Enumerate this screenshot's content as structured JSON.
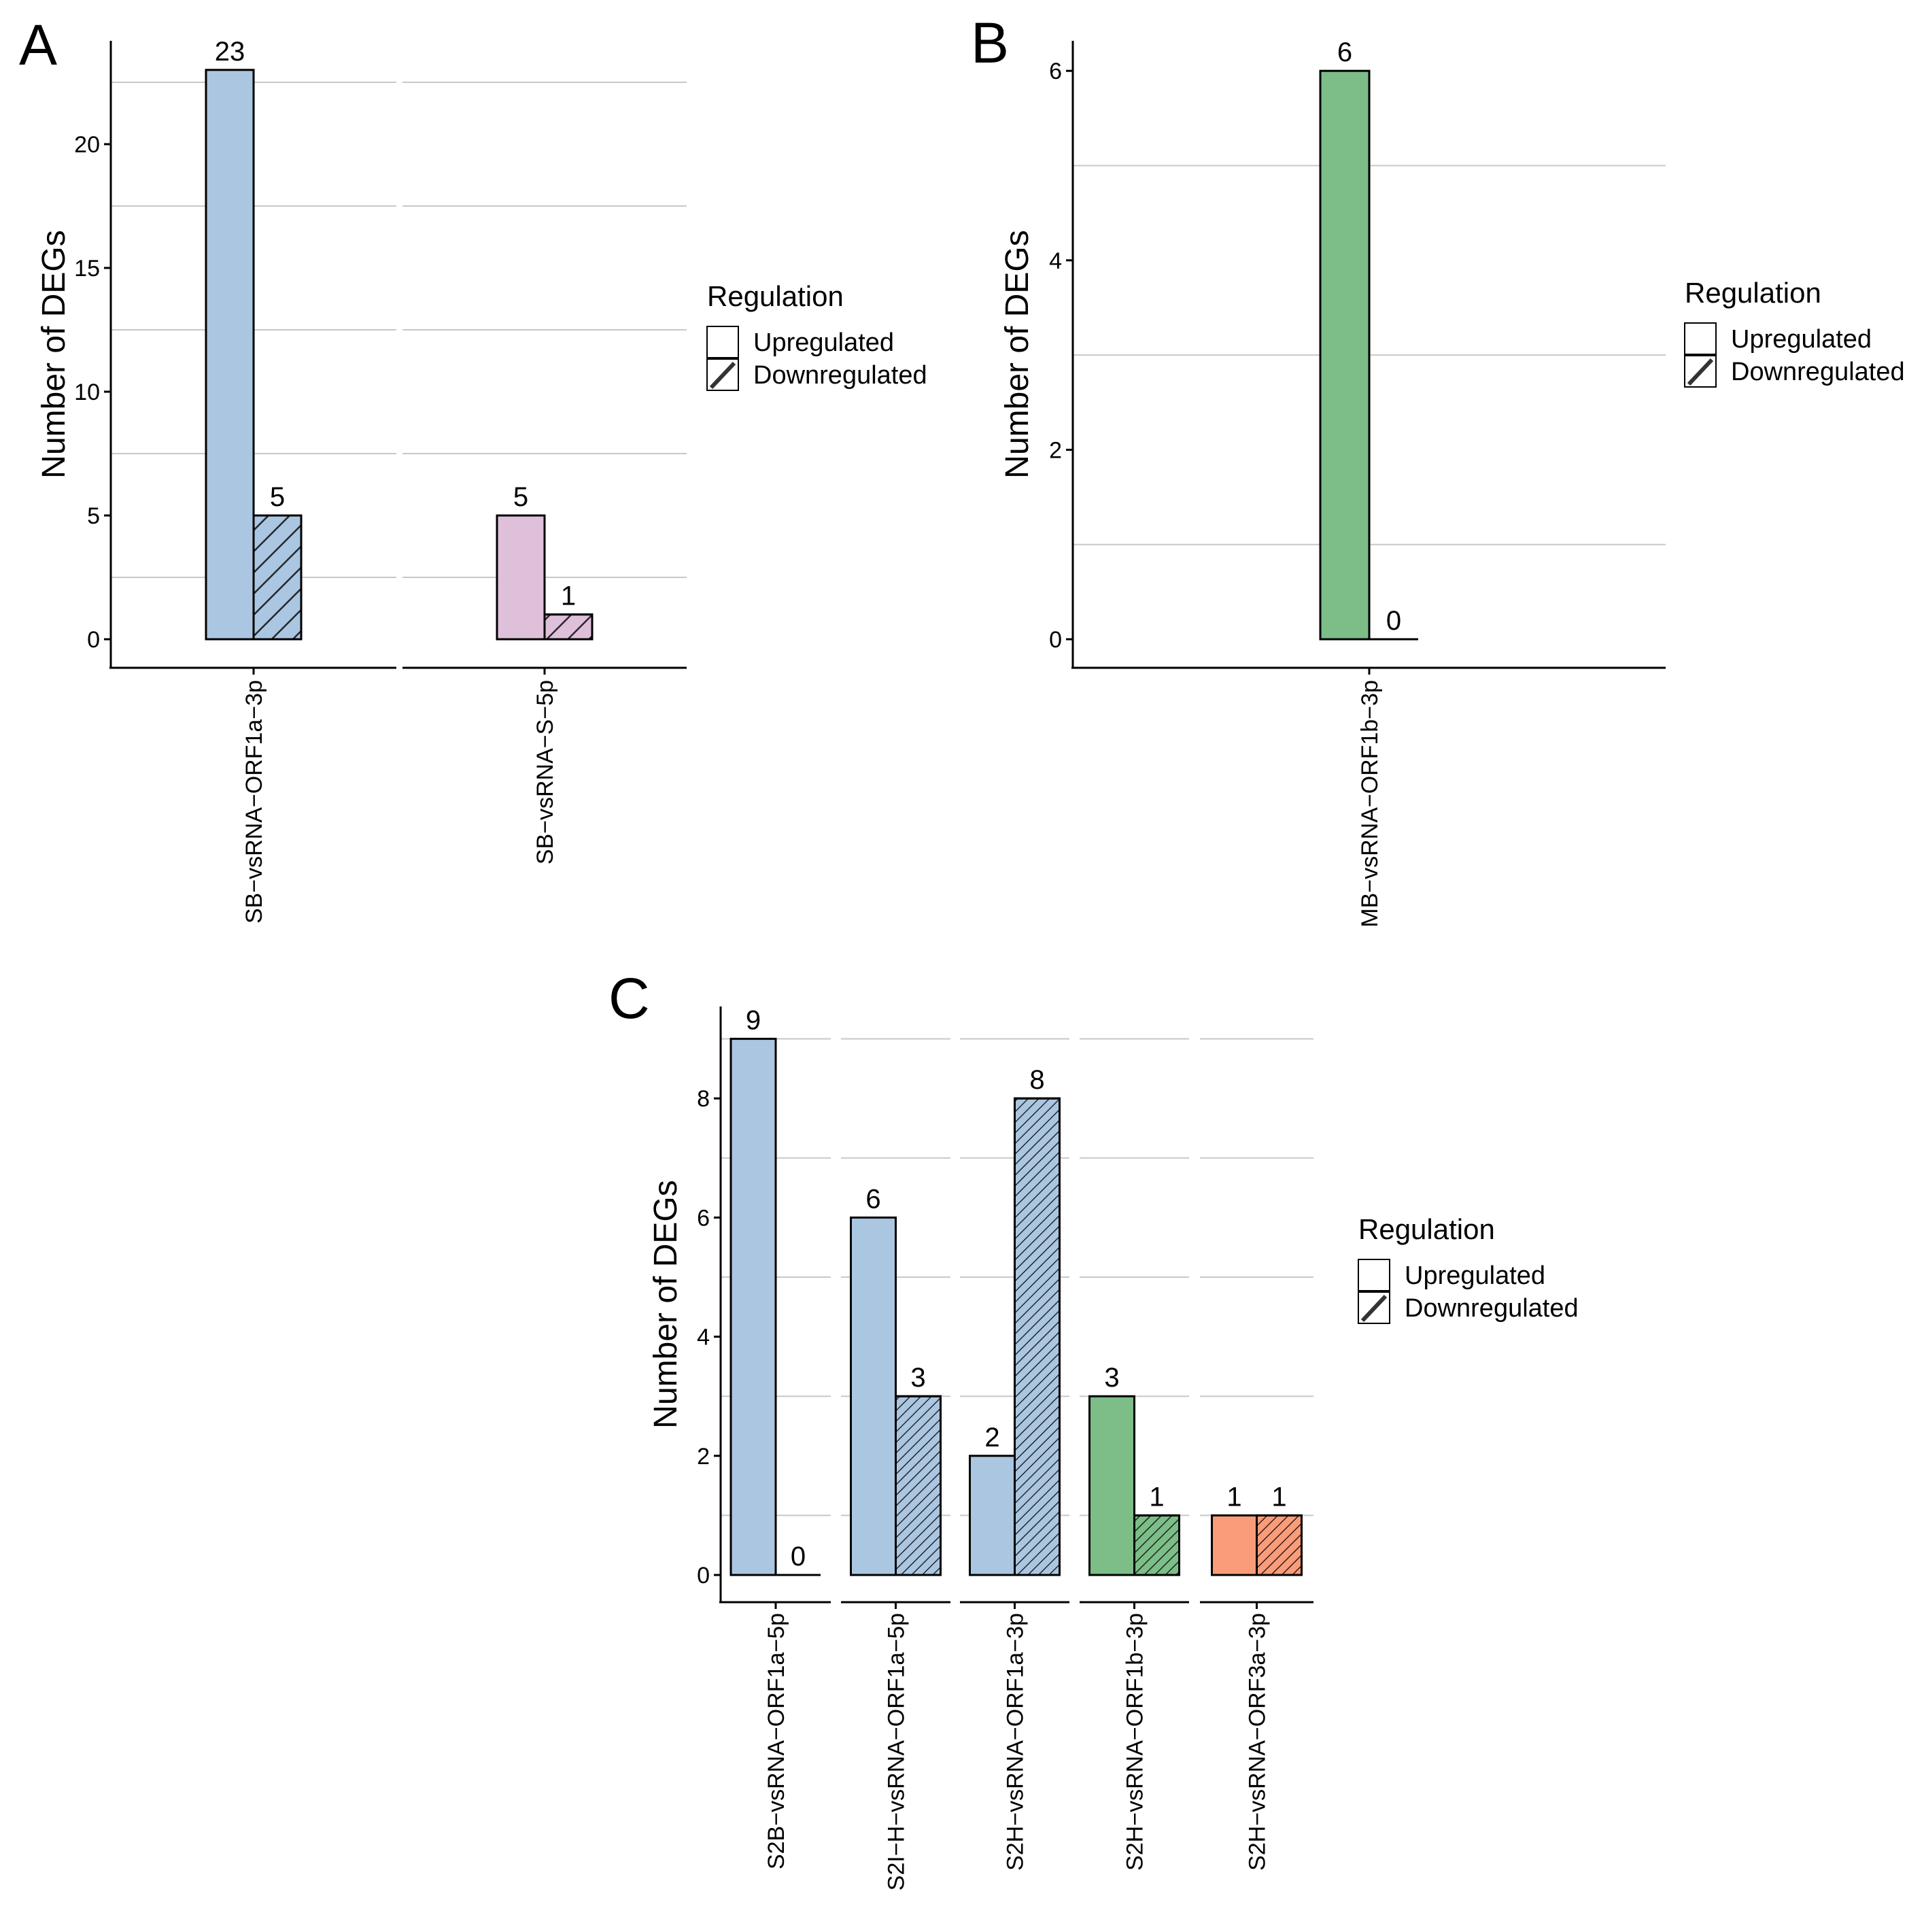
{
  "colors": {
    "blue": "#abc6e0",
    "pink": "#dfc0da",
    "green": "#7cbd88",
    "orange": "#fa9c79",
    "grid": "#c8c8c8",
    "outline": "#000000"
  },
  "legend": {
    "title": "Regulation",
    "items": [
      "Upregulated",
      "Downregulated"
    ]
  },
  "chart_data": [
    {
      "panel": "A",
      "type": "bar",
      "ylabel": "Number of DEGs",
      "ylim": [
        0,
        23
      ],
      "yticks": [
        0,
        5,
        10,
        15,
        20
      ],
      "grid": "horizontal minor lines",
      "legend_position": "right",
      "categories": [
        "SB−vsRNA−ORF1a−3p",
        "SB−vsRNA−S−5p"
      ],
      "fill_colors": [
        "blue",
        "pink"
      ],
      "series": [
        {
          "name": "Upregulated",
          "values": [
            23,
            5
          ]
        },
        {
          "name": "Downregulated",
          "values": [
            5,
            1
          ]
        }
      ]
    },
    {
      "panel": "B",
      "type": "bar",
      "ylabel": "Number of DEGs",
      "ylim": [
        0,
        6
      ],
      "yticks": [
        0,
        2,
        4,
        6
      ],
      "grid": "horizontal minor lines",
      "legend_position": "right",
      "categories": [
        "MB−vsRNA−ORF1b−3p"
      ],
      "fill_colors": [
        "green"
      ],
      "series": [
        {
          "name": "Upregulated",
          "values": [
            6
          ]
        },
        {
          "name": "Downregulated",
          "values": [
            0
          ]
        }
      ]
    },
    {
      "panel": "C",
      "type": "bar",
      "ylabel": "Number of DEGs",
      "ylim": [
        0,
        9
      ],
      "yticks": [
        0,
        2,
        4,
        6,
        8
      ],
      "grid": "horizontal minor lines",
      "legend_position": "right",
      "categories": [
        "S2B−vsRNA−ORF1a−5p",
        "S2I−H−vsRNA−ORF1a−5p",
        "S2H−vsRNA−ORF1a−3p",
        "S2H−vsRNA−ORF1b−3p",
        "S2H−vsRNA−ORF3a−3p"
      ],
      "fill_colors": [
        "blue",
        "blue",
        "blue",
        "green",
        "orange"
      ],
      "series": [
        {
          "name": "Upregulated",
          "values": [
            9,
            6,
            2,
            3,
            1
          ]
        },
        {
          "name": "Downregulated",
          "values": [
            0,
            3,
            8,
            1,
            1
          ]
        }
      ]
    }
  ]
}
